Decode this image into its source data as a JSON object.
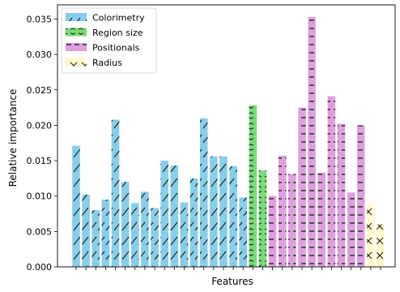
{
  "chart_data": {
    "type": "bar",
    "title": "",
    "xlabel": "Features",
    "ylabel": "Relative importance",
    "ylim": [
      0,
      0.037
    ],
    "y_ticks": [
      0.0,
      0.005,
      0.01,
      0.015,
      0.02,
      0.025,
      0.03,
      0.035
    ],
    "y_tick_labels": [
      "0.000",
      "0.005",
      "0.010",
      "0.015",
      "0.020",
      "0.025",
      "0.030",
      "0.035"
    ],
    "x_tick_labels_shown": false,
    "grid": false,
    "legend_placement": "top-left",
    "series": [
      {
        "name": "Colorimetry",
        "color": "#87ceeb",
        "hatch": "forward-slash",
        "values": [
          0.0171,
          0.0102,
          0.008,
          0.0095,
          0.0208,
          0.012,
          0.009,
          0.0106,
          0.0083,
          0.015,
          0.0143,
          0.0091,
          0.0125,
          0.021,
          0.0156,
          0.0156,
          0.0142,
          0.0098
        ]
      },
      {
        "name": "Region size",
        "color": "#77dd77",
        "hatch": "circles",
        "values": [
          0.0228,
          0.0136
        ]
      },
      {
        "name": "Positionals",
        "color": "#dda0dd",
        "hatch": "horizontal",
        "values": [
          0.01,
          0.0157,
          0.0131,
          0.0225,
          0.0353,
          0.0133,
          0.0241,
          0.0202,
          0.0105,
          0.02
        ]
      },
      {
        "name": "Radius",
        "color": "#fffacd",
        "hatch": "x",
        "values": [
          0.009,
          0.006
        ]
      }
    ]
  }
}
